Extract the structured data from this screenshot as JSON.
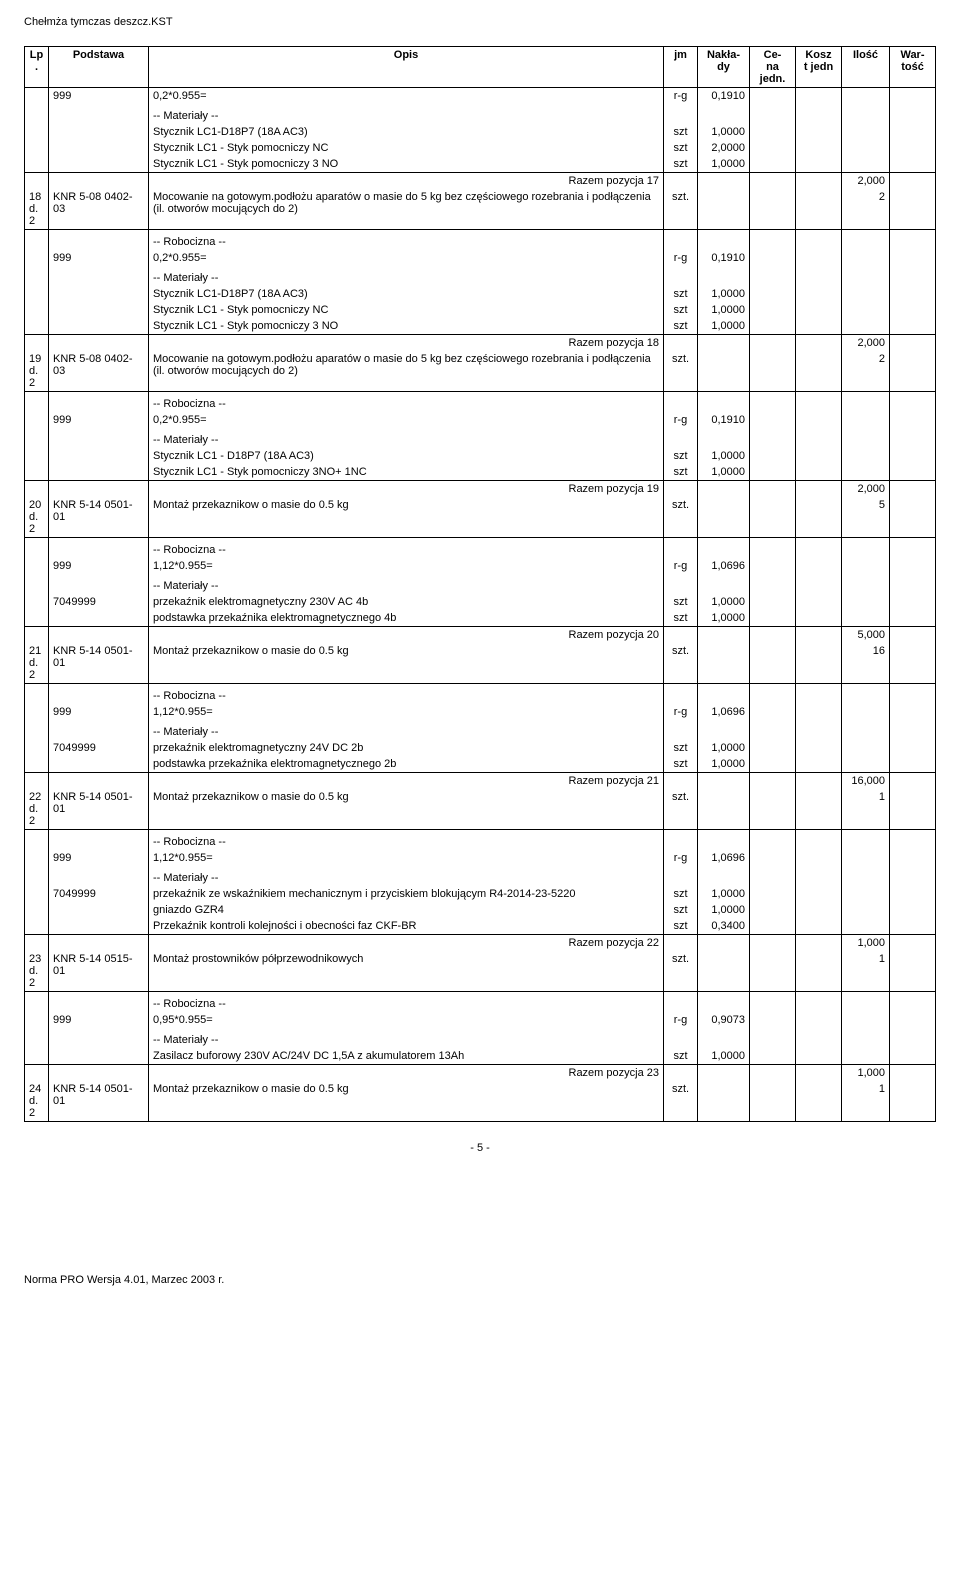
{
  "doc": {
    "title": "Chełmża tymczas deszcz.KST",
    "page_number": "- 5 -",
    "footer": "Norma PRO Wersja 4.01, Marzec 2003 r."
  },
  "header": {
    "lp": "Lp.",
    "podstawa": "Podstawa",
    "opis": "Opis",
    "jm": "jm",
    "naklady": "Nakła-\ndy",
    "cena": "Ce-\nna\njedn.",
    "koszt": "Kosz\nt jedn",
    "ilosc": "Ilość",
    "wartosc": "War-\ntość"
  },
  "labels": {
    "robocizna": "-- Robocizna --",
    "materialy": "-- Materiały --"
  },
  "groups": [
    {
      "first_opis": "0,2*0.955=",
      "first_jm": "r-g",
      "first_nak": "0,1910",
      "mat_hdr": true,
      "mat_lines": [
        {
          "o": "Stycznik LC1-D18P7 (18A AC3)",
          "jm": "szt",
          "n": "1,0000"
        },
        {
          "o": "Stycznik LC1 - Styk pomocniczy NC",
          "jm": "szt",
          "n": "2,0000"
        },
        {
          "o": "Stycznik LC1 - Styk pomocniczy 3 NO",
          "jm": "szt",
          "n": "1,0000"
        }
      ],
      "summary": {
        "txt": "Razem pozycja 17",
        "ilosc": "2,000"
      },
      "next": {
        "lp": "18\nd.2",
        "pod": "KNR 5-08 0402-03",
        "opis": "Mocowanie na gotowym.podłożu aparatów o masie do 5 kg bez częściowego rozebrania i podłączenia (il. otworów mocujących do 2)",
        "jm": "szt.",
        "ilosc": "2"
      }
    },
    {
      "robo_pod": "999",
      "robo_opis": "0,2*0.955=",
      "robo_jm": "r-g",
      "robo_nak": "0,1910",
      "mat_hdr": true,
      "mat_lines": [
        {
          "o": "Stycznik LC1-D18P7 (18A AC3)",
          "jm": "szt",
          "n": "1,0000"
        },
        {
          "o": "Stycznik LC1 - Styk pomocniczy NC",
          "jm": "szt",
          "n": "1,0000"
        },
        {
          "o": "Stycznik LC1 - Styk pomocniczy 3 NO",
          "jm": "szt",
          "n": "1,0000"
        }
      ],
      "summary": {
        "txt": "Razem pozycja 18",
        "ilosc": "2,000"
      },
      "next": {
        "lp": "19\nd.2",
        "pod": "KNR 5-08 0402-03",
        "opis": "Mocowanie na gotowym.podłożu aparatów o masie do 5 kg bez częściowego rozebrania i podłączenia (il. otworów mocujących do 2)",
        "jm": "szt.",
        "ilosc": "2"
      }
    },
    {
      "robo_pod": "999",
      "robo_opis": "0,2*0.955=",
      "robo_jm": "r-g",
      "robo_nak": "0,1910",
      "mat_hdr": true,
      "mat_lines": [
        {
          "o": "Stycznik LC1 - D18P7 (18A AC3)",
          "jm": "szt",
          "n": "1,0000"
        },
        {
          "o": "Stycznik LC1 - Styk pomocniczy 3NO+ 1NC",
          "jm": "szt",
          "n": "1,0000"
        }
      ],
      "summary": {
        "txt": "Razem pozycja 19",
        "ilosc": "2,000"
      },
      "next": {
        "lp": "20\nd.2",
        "pod": "KNR 5-14 0501-01",
        "opis": "Montaż przekaznikow o masie do 0.5 kg",
        "jm": "szt.",
        "ilosc": "5"
      }
    },
    {
      "robo_pod": "999",
      "robo_opis": "1,12*0.955=",
      "robo_jm": "r-g",
      "robo_nak": "1,0696",
      "mat_hdr": true,
      "mat_pod": "7049999",
      "mat_lines": [
        {
          "o": "przekaźnik elektromagnetyczny 230V AC 4b",
          "jm": "szt",
          "n": "1,0000"
        },
        {
          "o": "podstawka przekaźnika elektromagnetycznego 4b",
          "jm": "szt",
          "n": "1,0000"
        }
      ],
      "summary": {
        "txt": "Razem pozycja 20",
        "ilosc": "5,000"
      },
      "next": {
        "lp": "21\nd.2",
        "pod": "KNR 5-14 0501-01",
        "opis": "Montaż przekaznikow o masie do 0.5 kg",
        "jm": "szt.",
        "ilosc": "16"
      }
    },
    {
      "robo_pod": "999",
      "robo_opis": "1,12*0.955=",
      "robo_jm": "r-g",
      "robo_nak": "1,0696",
      "mat_hdr": true,
      "mat_pod": "7049999",
      "mat_lines": [
        {
          "o": "przekaźnik elektromagnetyczny 24V DC 2b",
          "jm": "szt",
          "n": "1,0000"
        },
        {
          "o": "podstawka przekaźnika elektromagnetycznego 2b",
          "jm": "szt",
          "n": "1,0000"
        }
      ],
      "summary": {
        "txt": "Razem pozycja 21",
        "ilosc": "16,000"
      },
      "next": {
        "lp": "22\nd.2",
        "pod": "KNR 5-14 0501-01",
        "opis": "Montaż przekaznikow o masie do 0.5 kg",
        "jm": "szt.",
        "ilosc": "1"
      }
    },
    {
      "robo_pod": "999",
      "robo_opis": "1,12*0.955=",
      "robo_jm": "r-g",
      "robo_nak": "1,0696",
      "mat_hdr": true,
      "mat_pod": "7049999",
      "mat_lines": [
        {
          "o": "przekaźnik  ze wskaźnikiem mechanicznym i przyciskiem blokującym R4-2014-23-5220",
          "jm": "szt",
          "n": "1,0000"
        },
        {
          "o": "gniazdo GZR4",
          "jm": "szt",
          "n": "1,0000"
        },
        {
          "o": "Przekaźnik kontroli kolejności i obecności faz CKF-BR",
          "jm": "szt",
          "n": "0,3400"
        }
      ],
      "summary": {
        "txt": "Razem pozycja 22",
        "ilosc": "1,000"
      },
      "next": {
        "lp": "23\nd.2",
        "pod": "KNR 5-14 0515-01",
        "opis": "Montaż prostowników półprzewodnikowych",
        "jm": "szt.",
        "ilosc": "1"
      }
    },
    {
      "robo_pod": "999",
      "robo_opis": "0,95*0.955=",
      "robo_jm": "r-g",
      "robo_nak": "0,9073",
      "mat_hdr": true,
      "mat_lines": [
        {
          "o": "Zasilacz buforowy 230V AC/24V DC 1,5A z akumulatorem 13Ah",
          "jm": "szt",
          "n": "1,0000"
        }
      ],
      "summary": {
        "txt": "Razem pozycja 23",
        "ilosc": "1,000"
      },
      "next": {
        "lp": "24\nd.2",
        "pod": "KNR 5-14 0501-01",
        "opis": "Montaż przekaznikow o masie do 0.5 kg",
        "jm": "szt.",
        "ilosc": "1"
      }
    }
  ]
}
